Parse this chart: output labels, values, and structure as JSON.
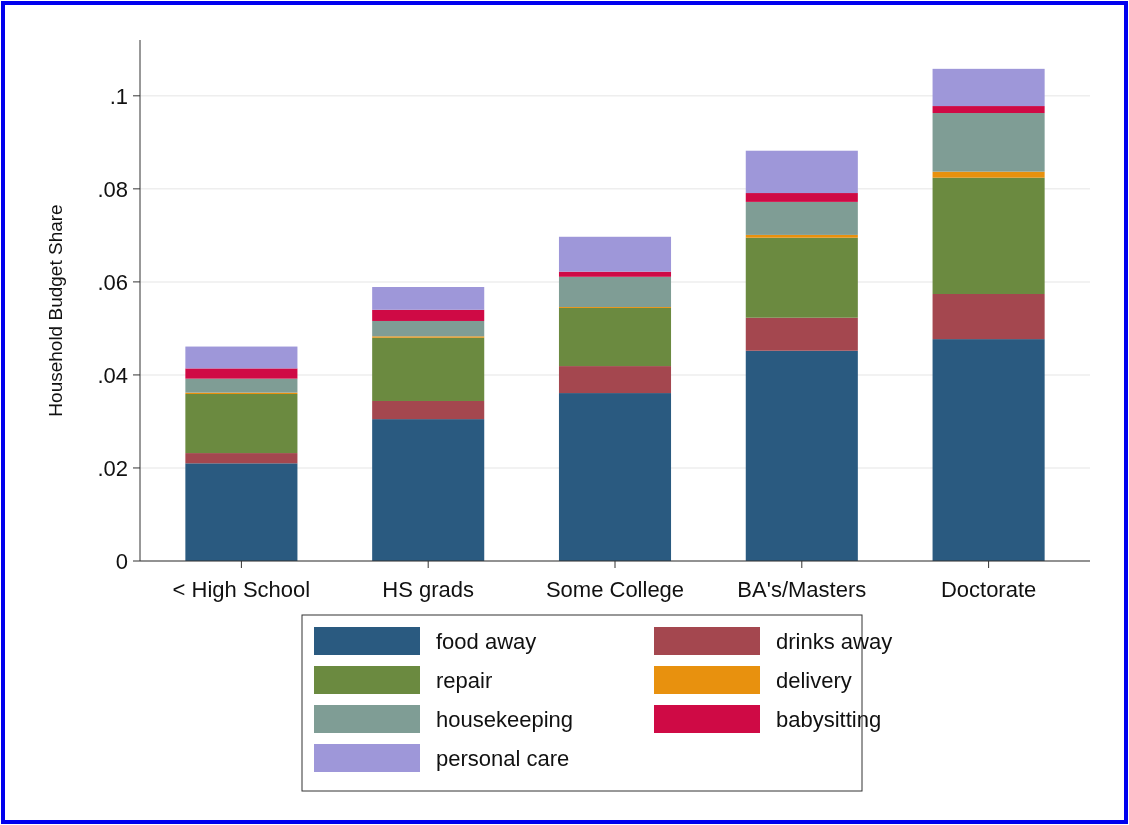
{
  "chart_data": {
    "type": "bar",
    "stacked": true,
    "ylabel": "Household Budget Share",
    "categories": [
      "< High School",
      "HS grads",
      "Some College",
      "BA's/Masters",
      "Doctorate"
    ],
    "series": [
      {
        "name": "food away",
        "color": "#2a5a80",
        "values": [
          0.021,
          0.0305,
          0.0361,
          0.0452,
          0.0477
        ]
      },
      {
        "name": "drinks away",
        "color": "#a4474f",
        "values": [
          0.0022,
          0.0039,
          0.0058,
          0.0071,
          0.0097
        ]
      },
      {
        "name": "repair",
        "color": "#6b8a40",
        "values": [
          0.0127,
          0.0136,
          0.0125,
          0.0172,
          0.025
        ]
      },
      {
        "name": "delivery",
        "color": "#e8910e",
        "values": [
          0.0003,
          0.0003,
          0.0002,
          0.0006,
          0.0013
        ]
      },
      {
        "name": "housekeeping",
        "color": "#7f9d95",
        "values": [
          0.003,
          0.0033,
          0.0065,
          0.0071,
          0.0126
        ]
      },
      {
        "name": "babysitting",
        "color": "#cf0a45",
        "values": [
          0.0022,
          0.0024,
          0.0011,
          0.0019,
          0.0015
        ]
      },
      {
        "name": "personal care",
        "color": "#9e97d9",
        "values": [
          0.0047,
          0.0049,
          0.0075,
          0.0091,
          0.008
        ]
      }
    ],
    "ylim": [
      0,
      0.112
    ],
    "yticks": [
      0,
      {
        "value": 0.02,
        "label": ".02"
      },
      {
        "value": 0.04,
        "label": ".04"
      },
      {
        "value": 0.06,
        "label": ".06"
      },
      {
        "value": 0.08,
        "label": ".08"
      },
      {
        "value": 0.1,
        "label": ".1"
      }
    ],
    "grid": "y",
    "legend": "bottom"
  }
}
